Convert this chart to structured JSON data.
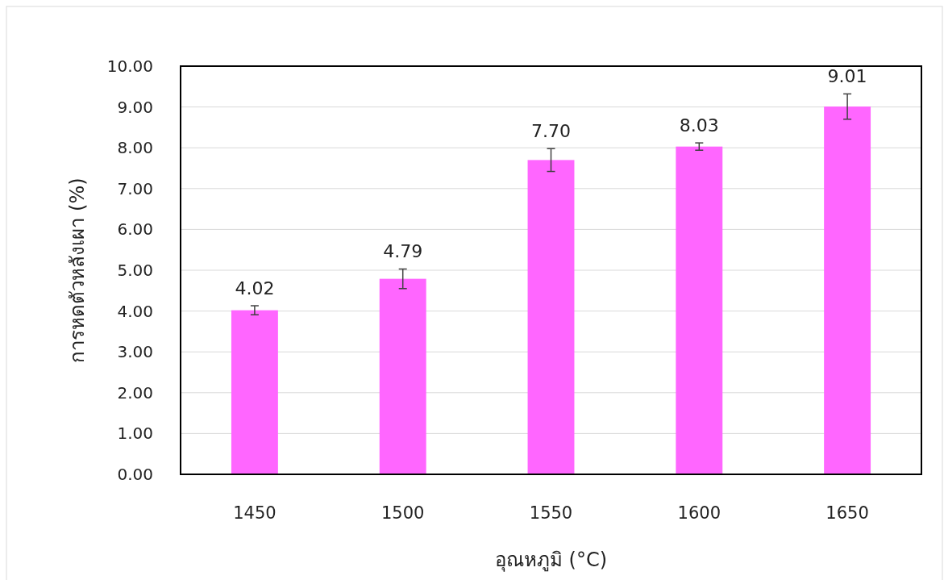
{
  "chart_data": {
    "type": "bar",
    "xlabel": "อุณหภูมิ (°C)",
    "ylabel": "การหดตัวหลังเผา (%)",
    "categories": [
      "1450",
      "1500",
      "1550",
      "1600",
      "1650"
    ],
    "values": [
      4.02,
      4.79,
      7.7,
      8.03,
      9.01
    ],
    "errors": [
      0.11,
      0.24,
      0.28,
      0.09,
      0.31
    ],
    "value_labels": [
      "4.02",
      "4.79",
      "7.70",
      "8.03",
      "9.01"
    ],
    "color": "#ff66ff",
    "ylim": [
      0,
      10
    ],
    "yticks": [
      {
        "value": 0,
        "label": "0.00"
      },
      {
        "value": 1,
        "label": "1.00"
      },
      {
        "value": 2,
        "label": "2.00"
      },
      {
        "value": 3,
        "label": "3.00"
      },
      {
        "value": 4,
        "label": "4.00"
      },
      {
        "value": 5,
        "label": "5.00"
      },
      {
        "value": 6,
        "label": "6.00"
      },
      {
        "value": 7,
        "label": "7.00"
      },
      {
        "value": 8,
        "label": "8.00"
      },
      {
        "value": 9,
        "label": "9.00"
      },
      {
        "value": 10,
        "label": "10.00"
      }
    ],
    "grid": "y"
  }
}
